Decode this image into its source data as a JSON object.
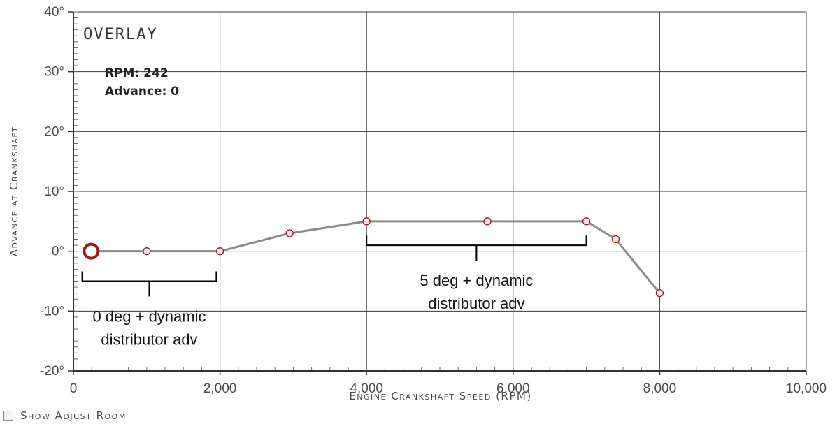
{
  "chart_data": {
    "type": "line",
    "title": "OVERLAY",
    "xlabel": "Engine Crankshaft Speed (RPM)",
    "ylabel": "Advance at Crankshaft",
    "xlim": [
      0,
      10000
    ],
    "ylim": [
      -20,
      40
    ],
    "x_ticks": [
      0,
      2000,
      4000,
      6000,
      8000,
      10000
    ],
    "x_tick_labels": [
      "0",
      "2,000",
      "4,000",
      "6,000",
      "8,000",
      "10,000"
    ],
    "y_ticks": [
      -20,
      -10,
      0,
      10,
      20,
      30,
      40
    ],
    "y_tick_labels": [
      "-20°",
      "-10°",
      "0°",
      "10°",
      "20°",
      "30°",
      "40°"
    ],
    "grid": true,
    "series": [
      {
        "x": [
          242,
          1000,
          2000,
          2950,
          4000,
          5650,
          7000,
          7400,
          8000
        ],
        "y": [
          0,
          0,
          0,
          3,
          5,
          5,
          5,
          2,
          -7
        ],
        "color": "#8a8a8a",
        "marker_color": "#a01818"
      }
    ],
    "selected_point": {
      "x": 242,
      "y": 0
    },
    "readout": {
      "rpm_label": "RPM: 242",
      "advance_label": "Advance: 0"
    },
    "annotations": [
      {
        "text_lines": [
          "0 deg  + dynamic",
          "distributor adv"
        ],
        "x_start": 120,
        "x_end": 1950,
        "y": -5
      },
      {
        "text_lines": [
          "5 deg + dynamic",
          "distributor adv"
        ],
        "x_start": 4000,
        "x_end": 7000,
        "y": 1
      }
    ]
  },
  "controls": {
    "show_adjust_room_label": "Show Adjust Room",
    "show_adjust_room_checked": false
  }
}
